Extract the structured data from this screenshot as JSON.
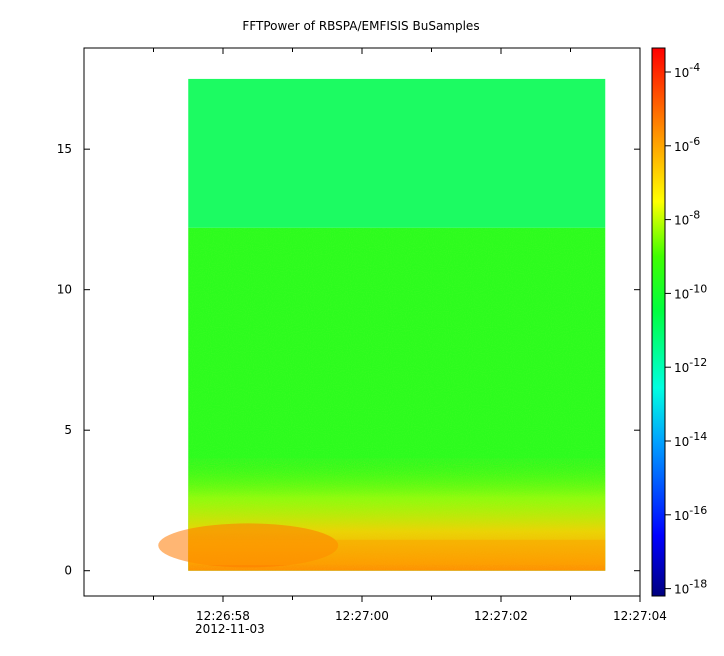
{
  "chart_data": {
    "type": "heatmap",
    "title": "FFTPower of RBSPA/EMFISIS  BuSamples",
    "xlabel": "",
    "ylabel": "",
    "x_ticks": [
      {
        "label": "12:26:58",
        "sublabel": "2012-11-03",
        "t": 2.0
      },
      {
        "label": "12:27:00",
        "t": 4.0
      },
      {
        "label": "12:27:02",
        "t": 6.0
      },
      {
        "label": "12:27:04",
        "t": 8.0
      }
    ],
    "x_minor_ticks": [
      1.0,
      3.0,
      5.0,
      7.0
    ],
    "xlim_seconds": [
      0.0,
      8.0
    ],
    "y_ticks": [
      0,
      5,
      10,
      15
    ],
    "ylim": [
      -0.9,
      18.6
    ],
    "data_extent": {
      "t_start": 1.5,
      "t_end": 7.5,
      "y_start": 0.0,
      "y_end": 17.5,
      "y_high_band_start": 12.2
    },
    "colorbar": {
      "scale": "log",
      "ticks": [
        {
          "base": "10",
          "exp": "-4",
          "value": -4
        },
        {
          "base": "10",
          "exp": "-6",
          "value": -6
        },
        {
          "base": "10",
          "exp": "-8",
          "value": -8
        },
        {
          "base": "10",
          "exp": "-10",
          "value": -10
        },
        {
          "base": "10",
          "exp": "-12",
          "value": -12
        },
        {
          "base": "10",
          "exp": "-14",
          "value": -14
        },
        {
          "base": "10",
          "exp": "-16",
          "value": -16
        },
        {
          "base": "10",
          "exp": "-18",
          "value": -18
        }
      ],
      "range_log": [
        -18.2,
        -3.35
      ],
      "colormap": [
        "#00008b",
        "#0000ff",
        "#00ffff",
        "#00ff00",
        "#ffff00",
        "#ff8000",
        "#ff0000"
      ]
    },
    "grid": false
  }
}
